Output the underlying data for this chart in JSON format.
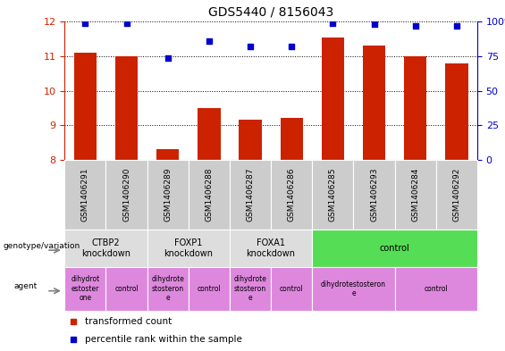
{
  "title": "GDS5440 / 8156043",
  "samples": [
    "GSM1406291",
    "GSM1406290",
    "GSM1406289",
    "GSM1406288",
    "GSM1406287",
    "GSM1406286",
    "GSM1406285",
    "GSM1406293",
    "GSM1406284",
    "GSM1406292"
  ],
  "transformed_counts": [
    11.1,
    11.0,
    8.3,
    9.5,
    9.15,
    9.2,
    11.55,
    11.3,
    11.0,
    10.8
  ],
  "percentile_ranks": [
    99,
    99,
    74,
    86,
    82,
    82,
    99,
    98,
    97,
    97
  ],
  "ylim_left": [
    8,
    12
  ],
  "ylim_right": [
    0,
    100
  ],
  "yticks_left": [
    8,
    9,
    10,
    11,
    12
  ],
  "yticks_right": [
    0,
    25,
    50,
    75,
    100
  ],
  "bar_color": "#cc2200",
  "scatter_color": "#0000cc",
  "genotype_groups": [
    {
      "label": "CTBP2\nknockdown",
      "start": 0,
      "end": 2,
      "color": "#dddddd"
    },
    {
      "label": "FOXP1\nknockdown",
      "start": 2,
      "end": 4,
      "color": "#dddddd"
    },
    {
      "label": "FOXA1\nknockdown",
      "start": 4,
      "end": 6,
      "color": "#dddddd"
    },
    {
      "label": "control",
      "start": 6,
      "end": 10,
      "color": "#55dd55"
    }
  ],
  "agent_groups": [
    {
      "label": "dihydrot\nestoster\none",
      "start": 0,
      "end": 1,
      "color": "#dd88dd"
    },
    {
      "label": "control",
      "start": 1,
      "end": 2,
      "color": "#dd88dd"
    },
    {
      "label": "dihydrote\nstosteron\ne",
      "start": 2,
      "end": 3,
      "color": "#dd88dd"
    },
    {
      "label": "control",
      "start": 3,
      "end": 4,
      "color": "#dd88dd"
    },
    {
      "label": "dihydrote\nstosteron\ne",
      "start": 4,
      "end": 5,
      "color": "#dd88dd"
    },
    {
      "label": "control",
      "start": 5,
      "end": 6,
      "color": "#dd88dd"
    },
    {
      "label": "dihydrotestosteron\ne",
      "start": 6,
      "end": 8,
      "color": "#dd88dd"
    },
    {
      "label": "control",
      "start": 8,
      "end": 10,
      "color": "#dd88dd"
    }
  ],
  "legend_items": [
    {
      "label": "transformed count",
      "color": "#cc2200"
    },
    {
      "label": "percentile rank within the sample",
      "color": "#0000cc"
    }
  ],
  "left_axis_color": "#cc2200",
  "right_axis_color": "#0000cc",
  "sample_bg_color": "#cccccc",
  "fig_width": 5.65,
  "fig_height": 3.93,
  "dpi": 100
}
